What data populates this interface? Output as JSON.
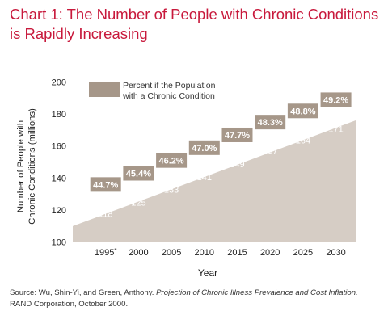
{
  "chart_data": {
    "type": "area",
    "title_lines": [
      "Chart 1: The Number of People with Chronic Conditions",
      "is Rapidly Increasing"
    ],
    "xlabel": "Year",
    "ylabel_lines": [
      "Number of People with",
      "Chronic Conditions (millions)"
    ],
    "ylim": [
      100,
      200
    ],
    "yticks": [
      100,
      120,
      140,
      160,
      180,
      200
    ],
    "categories": [
      "1995*",
      "2000",
      "2005",
      "2010",
      "2015",
      "2020",
      "2025",
      "2030"
    ],
    "x": [
      1995,
      2000,
      2005,
      2010,
      2015,
      2020,
      2025,
      2030
    ],
    "values": [
      118,
      125,
      133,
      141,
      149,
      157,
      164,
      171
    ],
    "percent_labels": [
      "44.7%",
      "45.4%",
      "46.2%",
      "47.0%",
      "47.7%",
      "48.3%",
      "48.8%",
      "49.2%"
    ],
    "legend_lines": [
      "Percent if the Population",
      "with a Chronic Condition"
    ],
    "legend_position": "top-left",
    "grid": false,
    "colors": {
      "area": "#d6cdc5",
      "percent_box": "#a69789",
      "title": "#c8193c"
    }
  },
  "source": {
    "prefix": "Source: Wu, Shin-Yi, and Green, Anthony. ",
    "italic": "Projection of Chronic Illness Prevalence and Cost Inflation.",
    "line2": "RAND Corporation, October 2000."
  }
}
